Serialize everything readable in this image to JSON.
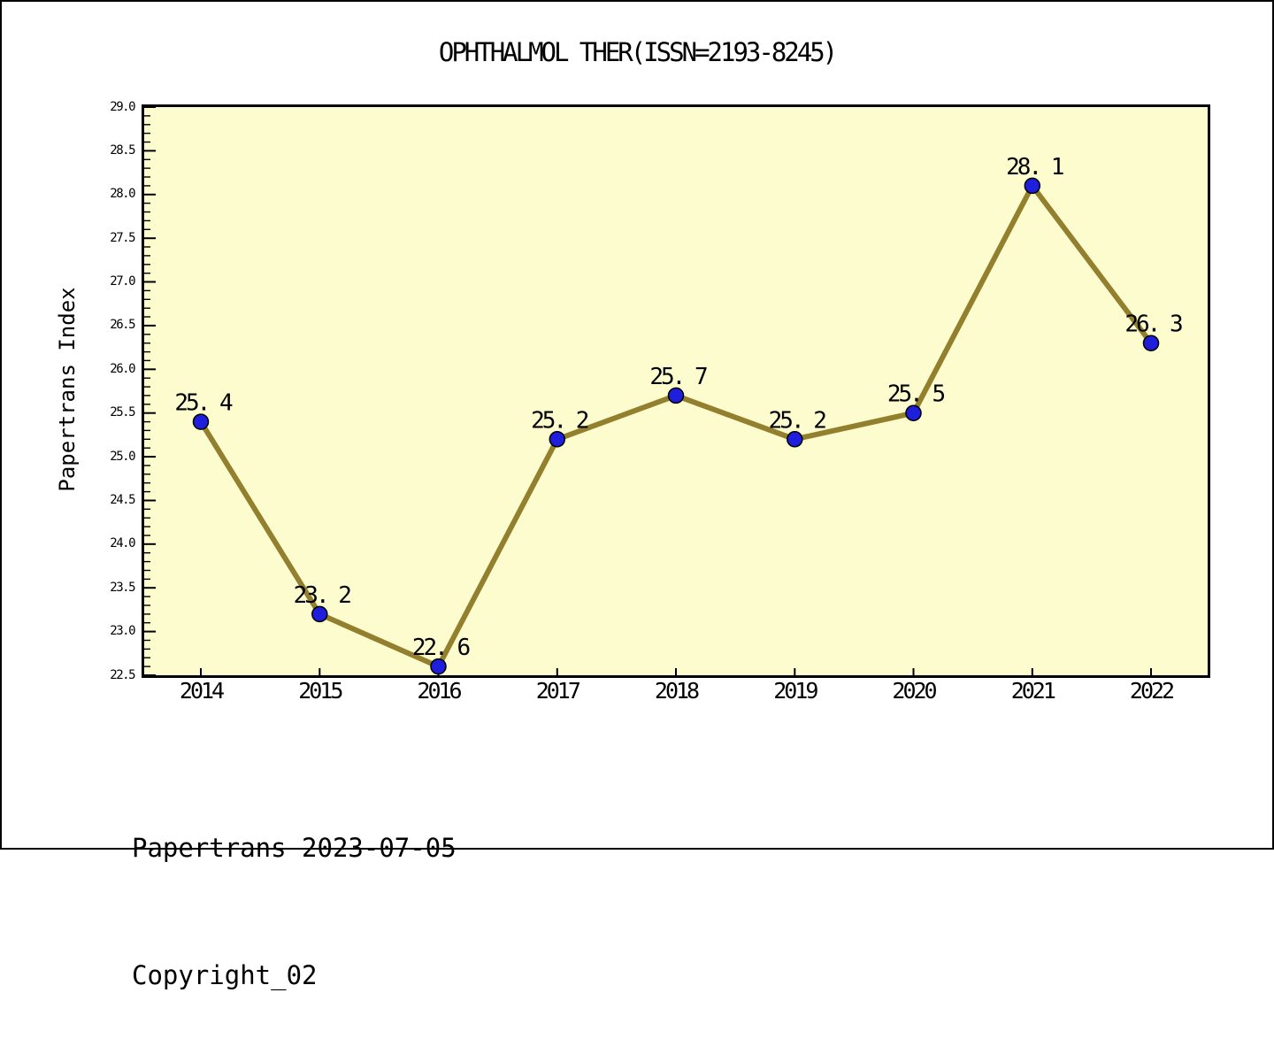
{
  "title": "OPHTHALMOL THER(ISSN=2193-8245)",
  "footer": {
    "line1": "Papertrans 2023-07-05",
    "line2": "Copyright_02"
  },
  "chart_data": {
    "type": "line",
    "title": "OPHTHALMOL THER(ISSN=2193-8245)",
    "xlabel": "",
    "ylabel": "Papertrans Index",
    "categories": [
      "2014",
      "2015",
      "2016",
      "2017",
      "2018",
      "2019",
      "2020",
      "2021",
      "2022"
    ],
    "series": [
      {
        "name": "Papertrans Index",
        "values": [
          25.4,
          23.2,
          22.6,
          25.2,
          25.7,
          25.2,
          25.5,
          28.1,
          26.3
        ],
        "point_labels": [
          "25. 4",
          "23. 2",
          "22. 6",
          "25. 2",
          "25. 7",
          "25. 2",
          "25. 5",
          "28. 1",
          "26. 3"
        ]
      }
    ],
    "ylim": [
      22.5,
      29.0
    ],
    "y_major_step": 0.5,
    "y_minor_step": 0.1,
    "y_tick_labels": [
      "22.5",
      "23.0",
      "23.5",
      "24.0",
      "24.5",
      "25.0",
      "25.5",
      "26.0",
      "26.5",
      "27.0",
      "27.5",
      "28.0",
      "28.5",
      "29.0"
    ],
    "grid": false,
    "legend_position": "none",
    "marker_shape": "circle",
    "colors": {
      "line": "#92802E",
      "marker_fill": "#1E1EDC",
      "marker_edge": "#000000",
      "plot_background": "#FCFCCE",
      "axis": "#000000",
      "text": "#000000",
      "page_background": "#FFFFFF"
    }
  }
}
